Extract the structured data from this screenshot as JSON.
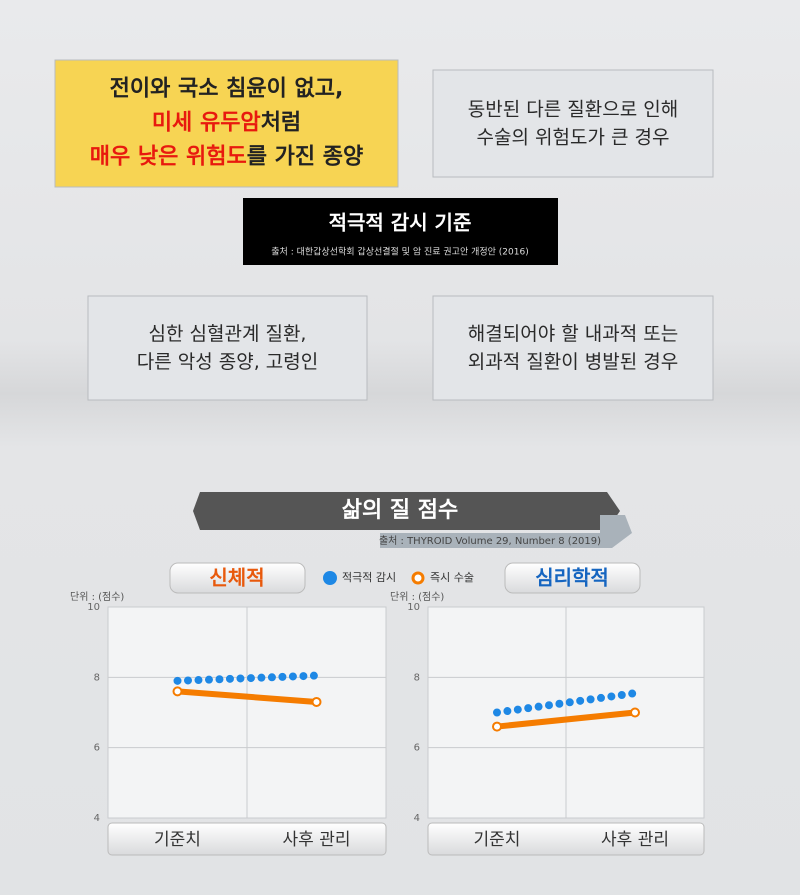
{
  "criteria": {
    "title": "적극적 감시 기준",
    "source": "출처 : 대한갑상선학회 갑상선결절 및 암 진료 권고안 개정안 (2016)",
    "boxes": [
      {
        "lines": [
          [
            {
              "text": "전이와 국소 침윤이 없고,"
            }
          ],
          [
            {
              "text": "미세 유두암",
              "color": "#e8190e"
            },
            {
              "text": "처럼"
            }
          ],
          [
            {
              "text": "매우 낮은 위험도",
              "color": "#e8190e"
            },
            {
              "text": "를 가진 종양"
            }
          ]
        ]
      },
      {
        "lines": [
          [
            {
              "text": "동반된 다른 질환으로 인해"
            }
          ],
          [
            {
              "text": "수술의 위험도가 큰 경우"
            }
          ]
        ]
      },
      {
        "lines": [
          [
            {
              "text": "심한 심혈관계 질환,"
            }
          ],
          [
            {
              "text": "다른 악성 종양, 고령인"
            }
          ]
        ]
      },
      {
        "lines": [
          [
            {
              "text": "해결되어야 할 내과적 또는"
            }
          ],
          [
            {
              "text": "외과적 질환이 병발된 경우"
            }
          ]
        ]
      }
    ]
  },
  "quality": {
    "title": "삶의 질 점수",
    "source": "출처 : THYROID Volume 29, Number 8 (2019)"
  },
  "chart_data": [
    {
      "type": "line",
      "title": "신체적",
      "title_color": "#e8590c",
      "y_label": "단위 : (점수)",
      "categories": [
        "기준치",
        "사후 관리"
      ],
      "ylim": [
        4,
        10
      ],
      "yticks": [
        4,
        6,
        8,
        10
      ],
      "grid": true,
      "series": [
        {
          "name": "적극적 감시",
          "color": "#1e88e5",
          "style": "dotted",
          "values": [
            7.9,
            8.05
          ]
        },
        {
          "name": "즉시 수술",
          "color": "#f57c00",
          "style": "solid",
          "values": [
            7.6,
            7.3
          ]
        }
      ]
    },
    {
      "type": "line",
      "title": "심리학적",
      "title_color": "#1565c0",
      "y_label": "단위 : (점수)",
      "categories": [
        "기준치",
        "사후 관리"
      ],
      "ylim": [
        4,
        10
      ],
      "yticks": [
        4,
        6,
        8,
        10
      ],
      "grid": true,
      "series": [
        {
          "color": "#1e88e5",
          "style": "dotted",
          "values": [
            7.0,
            7.55
          ]
        },
        {
          "color": "#f57c00",
          "style": "solid",
          "values": [
            6.6,
            7.0
          ]
        }
      ]
    }
  ]
}
